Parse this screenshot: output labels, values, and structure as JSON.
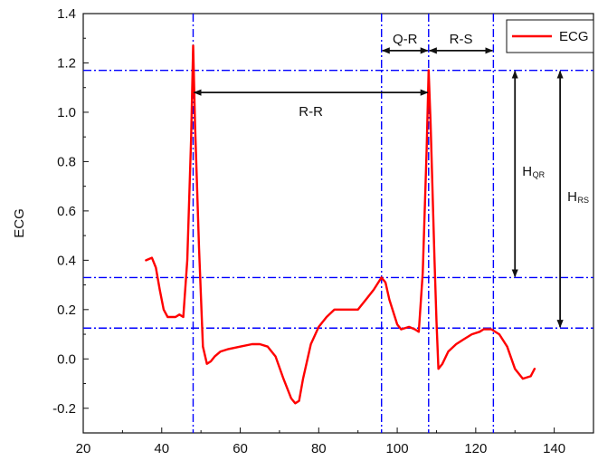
{
  "chart_data": {
    "type": "line",
    "title": "",
    "xlabel": "",
    "ylabel": "ECG",
    "xlim": [
      20,
      150
    ],
    "ylim": [
      -0.3,
      1.4
    ],
    "x_ticks": [
      20,
      40,
      60,
      80,
      100,
      120,
      140
    ],
    "y_ticks": [
      -0.2,
      0.0,
      0.2,
      0.4,
      0.6,
      0.8,
      1.0,
      1.2,
      1.4
    ],
    "x_tick_labels": [
      "20",
      "40",
      "60",
      "80",
      "100",
      "120",
      "140"
    ],
    "y_tick_labels": [
      "-0.2",
      "0.0",
      "0.2",
      "0.4",
      "0.6",
      "0.8",
      "1.0",
      "1.2",
      "1.4"
    ],
    "grid": false,
    "legend_position": "top-right",
    "series": [
      {
        "name": "ECG",
        "color": "#ff0000",
        "x": [
          36,
          37.5,
          38.5,
          39.5,
          40.5,
          41.5,
          42.5,
          43.5,
          44.5,
          45.5,
          46.5,
          47.5,
          48,
          48.5,
          49.5,
          50.5,
          51.5,
          52.5,
          53.5,
          55,
          57,
          60,
          63,
          65,
          67,
          69,
          71,
          73,
          74,
          75,
          76,
          78,
          80,
          82,
          84,
          86,
          88,
          90,
          92,
          94,
          96,
          97,
          98,
          100,
          101,
          103,
          104.5,
          105.5,
          106.5,
          107.5,
          108,
          108.5,
          109.5,
          110,
          110.5,
          111.5,
          113,
          115,
          117,
          119,
          121,
          122,
          124,
          126,
          128,
          130,
          132,
          134,
          135
        ],
        "y": [
          0.4,
          0.41,
          0.37,
          0.28,
          0.2,
          0.17,
          0.17,
          0.17,
          0.18,
          0.17,
          0.4,
          0.9,
          1.27,
          0.95,
          0.45,
          0.05,
          -0.02,
          -0.01,
          0.01,
          0.03,
          0.04,
          0.05,
          0.06,
          0.06,
          0.05,
          0.01,
          -0.08,
          -0.16,
          -0.18,
          -0.17,
          -0.08,
          0.06,
          0.13,
          0.17,
          0.2,
          0.2,
          0.2,
          0.2,
          0.24,
          0.28,
          0.33,
          0.31,
          0.24,
          0.14,
          0.12,
          0.13,
          0.12,
          0.11,
          0.35,
          0.85,
          1.17,
          0.95,
          0.4,
          0.15,
          -0.04,
          -0.02,
          0.03,
          0.06,
          0.08,
          0.1,
          0.11,
          0.12,
          0.12,
          0.1,
          0.05,
          -0.04,
          -0.08,
          -0.07,
          -0.04
        ]
      }
    ],
    "reference_lines": {
      "vertical_x": [
        48,
        96,
        108,
        124.5
      ],
      "horizontal_y": [
        1.17,
        0.33,
        0.125
      ],
      "color": "#0000ff",
      "style": "dash-dot"
    },
    "annotations": [
      {
        "label": "R-R",
        "type": "horizontal-interval",
        "from_x": 48,
        "to_x": 108,
        "at_y": 1.08
      },
      {
        "label": "Q-R",
        "type": "horizontal-interval",
        "from_x": 96,
        "to_x": 108,
        "at_y": 1.25
      },
      {
        "label": "R-S",
        "type": "horizontal-interval",
        "from_x": 108,
        "to_x": 124.5,
        "at_y": 1.25
      },
      {
        "label": "H",
        "sub": "QR",
        "type": "vertical-interval",
        "at_x": 130,
        "from_y": 0.33,
        "to_y": 1.17
      },
      {
        "label": "H",
        "sub": "RS",
        "type": "vertical-interval",
        "at_x": 141.5,
        "from_y": 0.125,
        "to_y": 1.17
      }
    ]
  }
}
